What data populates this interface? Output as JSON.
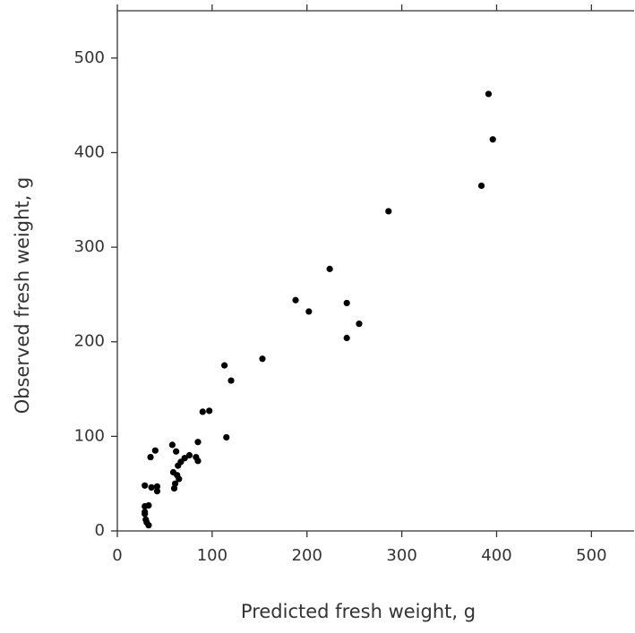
{
  "chart_data": {
    "type": "scatter",
    "xlabel": "Predicted fresh weight, g",
    "ylabel": "Observed fresh weight, g",
    "color": "#000000",
    "xlim": [
      0,
      545
    ],
    "ylim": [
      0,
      550
    ],
    "xticks": [
      0,
      100,
      200,
      300,
      400,
      500
    ],
    "yticks": [
      0,
      100,
      200,
      300,
      400,
      500
    ],
    "x": [
      391.5,
      396,
      384,
      286,
      224,
      188,
      202,
      242,
      255,
      242,
      153,
      113,
      120,
      97,
      90,
      115,
      85,
      58,
      62,
      40,
      35,
      76,
      83,
      85,
      71,
      67,
      64,
      59,
      63,
      65,
      61,
      60,
      29,
      36,
      42,
      42,
      33,
      29,
      29,
      30,
      31,
      33,
      29
    ],
    "y": [
      462,
      414,
      365,
      338,
      277,
      244,
      232,
      241,
      219,
      204,
      182,
      175,
      159,
      127,
      126,
      99,
      94,
      91,
      84,
      85,
      78,
      80,
      78,
      74,
      77,
      73,
      69,
      62,
      59,
      55,
      50,
      45,
      48,
      46,
      47,
      42,
      27,
      26,
      18,
      12,
      9,
      6,
      20
    ]
  }
}
